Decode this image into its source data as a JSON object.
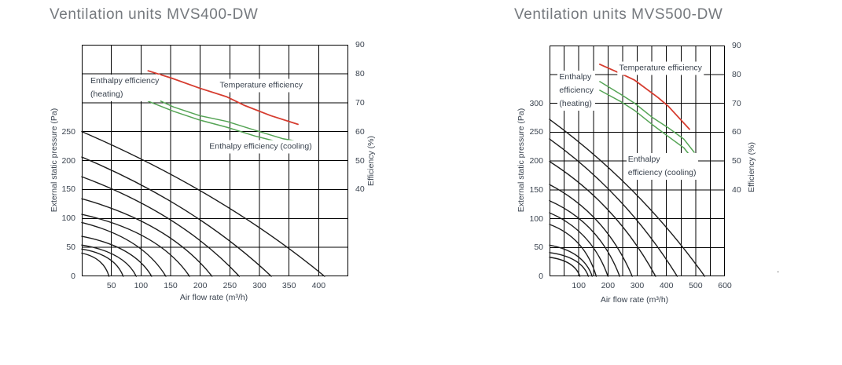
{
  "stray_mark": ".",
  "colors": {
    "background": "#ffffff",
    "title_text": "#75797e",
    "axis_text": "#3a434f",
    "grid_line": "#000000",
    "plot_border": "#000000",
    "fan_curve": "#1c1c1c",
    "temperature_line": "#d63c2f",
    "enthalpy_line": "#55a455"
  },
  "charts": [
    {
      "title": "Ventilation units MVS400-DW",
      "xlabel": "Air flow rate (m³/h)",
      "ylabel_left": "External static pressure (Pa)",
      "ylabel_right": "Efficiency (%)",
      "chart_data": {
        "type": "line",
        "x_axis": {
          "label": "Air flow rate (m³/h)",
          "min": 0,
          "max": 450,
          "grid_step": 50,
          "tick_labels": [
            50,
            100,
            150,
            200,
            250,
            300,
            350,
            400
          ]
        },
        "y_axis_left": {
          "label": "External static pressure (Pa)",
          "min": 0,
          "max": 400,
          "grid_step": 50,
          "tick_labels": [
            0,
            50,
            100,
            150,
            200,
            250
          ]
        },
        "y_axis_right": {
          "label": "Efficiency (%)",
          "tick_labels": [
            90,
            80,
            70,
            60,
            50,
            40
          ]
        },
        "fan_curves": [
          {
            "p0": 250,
            "q0": 410,
            "c": 0.58
          },
          {
            "p0": 206,
            "q0": 320,
            "c": 0.6
          },
          {
            "p0": 172,
            "q0": 266,
            "c": 0.63
          },
          {
            "p0": 134,
            "q0": 220,
            "c": 0.68
          },
          {
            "p0": 107,
            "q0": 182,
            "c": 0.72
          },
          {
            "p0": 93,
            "q0": 142,
            "c": 0.72
          },
          {
            "p0": 69,
            "q0": 118,
            "c": 0.75
          },
          {
            "p0": 54,
            "q0": 92,
            "c": 0.78
          },
          {
            "p0": 47,
            "q0": 70,
            "c": 0.8
          },
          {
            "p0": 40,
            "q0": 46,
            "c": 0.8
          }
        ],
        "efficiency_series": [
          {
            "key": "temperature-efficiency",
            "name": "Temperature efficiency",
            "color_key": "temperature_line",
            "points": [
              [
                112,
                81
              ],
              [
                151,
                78.5
              ],
              [
                199,
                75
              ],
              [
                245,
                72
              ],
              [
                275,
                69
              ],
              [
                319,
                65.5
              ],
              [
                365,
                62.5
              ]
            ]
          },
          {
            "key": "enthalpy-efficiency-heating",
            "name": "Enthalpy efficiency (heating)",
            "color_key": "enthalpy_line",
            "points": [
              [
                112,
                72.5
              ],
              [
                155,
                68.5
              ],
              [
                199,
                65.5
              ],
              [
                245,
                63.5
              ],
              [
                292,
                60.5
              ],
              [
                340,
                57.5
              ],
              [
                368,
                56.5
              ]
            ]
          },
          {
            "key": "enthalpy-efficiency-cooling",
            "name": "Enthalpy efficiency (cooling)",
            "color_key": "enthalpy_line",
            "points": [
              [
                112,
                70.5
              ],
              [
                155,
                67
              ],
              [
                199,
                64
              ],
              [
                245,
                61.5
              ],
              [
                292,
                58.5
              ],
              [
                340,
                56
              ],
              [
                368,
                55.5
              ]
            ]
          }
        ],
        "annotations": [
          {
            "key": "label-enthalpy-heating",
            "lines": [
              "Enthalpy efficiency",
              "(heating)"
            ],
            "flow": 12,
            "pa": 348,
            "anchor": "tl"
          },
          {
            "key": "label-temperature",
            "lines": [
              "Temperature efficiency"
            ],
            "flow": 303,
            "pa": 330,
            "anchor": "c"
          },
          {
            "key": "label-enthalpy-cooling",
            "lines": [
              "Enthalpy efficiency (cooling)"
            ],
            "flow": 302,
            "pa": 224,
            "anchor": "c"
          }
        ]
      }
    },
    {
      "title": "Ventilation units MVS500-DW",
      "xlabel": "Air flow rate (m³/h)",
      "ylabel_left": "External static pressure (Pa)",
      "ylabel_right": "Efficiency (%)",
      "chart_data": {
        "type": "line",
        "x_axis": {
          "label": "Air flow rate (m³/h)",
          "min": 0,
          "max": 600,
          "grid_step": 50,
          "tick_labels": [
            100,
            200,
            300,
            400,
            500,
            600
          ]
        },
        "y_axis_left": {
          "label": "External static pressure (Pa)",
          "min": 0,
          "max": 400,
          "grid_step": 50,
          "tick_labels": [
            0,
            50,
            100,
            150,
            200,
            250,
            300
          ]
        },
        "y_axis_right": {
          "label": "Efficiency (%)",
          "tick_labels": [
            90,
            80,
            70,
            60,
            50,
            40
          ]
        },
        "fan_curves": [
          {
            "p0": 272,
            "q0": 531,
            "c": 0.58
          },
          {
            "p0": 238,
            "q0": 437,
            "c": 0.6
          },
          {
            "p0": 199,
            "q0": 363,
            "c": 0.63
          },
          {
            "p0": 159,
            "q0": 283,
            "c": 0.68
          },
          {
            "p0": 131,
            "q0": 240,
            "c": 0.71
          },
          {
            "p0": 110,
            "q0": 200,
            "c": 0.72
          },
          {
            "p0": 90,
            "q0": 160,
            "c": 0.75
          },
          {
            "p0": 54,
            "q0": 146,
            "c": 0.8
          },
          {
            "p0": 41,
            "q0": 133,
            "c": 0.82
          },
          {
            "p0": 33,
            "q0": 104,
            "c": 0.82
          }
        ],
        "efficiency_series": [
          {
            "key": "temperature-efficiency",
            "name": "Temperature efficiency",
            "color_key": "temperature_line",
            "points": [
              [
                172,
                83.5
              ],
              [
                250,
                80
              ],
              [
                291,
                78
              ],
              [
                371,
                72
              ],
              [
                406,
                69
              ],
              [
                479,
                61
              ]
            ]
          },
          {
            "key": "enthalpy-efficiency-heating",
            "name": "Enthalpy efficiency (heating)",
            "color_key": "enthalpy_line",
            "points": [
              [
                172,
                77.5
              ],
              [
                245,
                73
              ],
              [
                291,
                70
              ],
              [
                353,
                65
              ],
              [
                406,
                61.5
              ],
              [
                460,
                57.5
              ],
              [
                495,
                53
              ]
            ]
          },
          {
            "key": "enthalpy-efficiency-cooling",
            "name": "Enthalpy efficiency (cooling)",
            "color_key": "enthalpy_line",
            "points": [
              [
                172,
                74.5
              ],
              [
                245,
                70.5
              ],
              [
                291,
                67.5
              ],
              [
                353,
                62.5
              ],
              [
                406,
                58.5
              ],
              [
                460,
                54.5
              ],
              [
                495,
                50
              ]
            ]
          }
        ],
        "annotations": [
          {
            "key": "label-enthalpy-heating",
            "lines": [
              "Enthalpy",
              "efficiency",
              "(heating)"
            ],
            "flow": 28,
            "pa": 356,
            "anchor": "tl"
          },
          {
            "key": "label-temperature",
            "lines": [
              "Temperature efficiency"
            ],
            "flow": 380,
            "pa": 361,
            "anchor": "c"
          },
          {
            "key": "label-enthalpy-cooling",
            "lines": [
              "Enthalpy",
              "efficiency (cooling)"
            ],
            "flow": 263,
            "pa": 214,
            "anchor": "tl"
          }
        ]
      }
    }
  ]
}
